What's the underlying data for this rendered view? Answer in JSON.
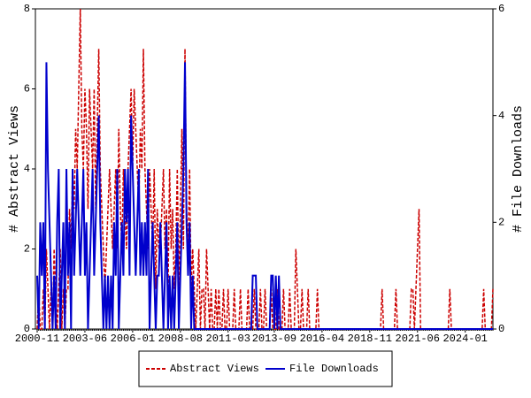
{
  "chart_data": {
    "type": "line",
    "y_label": "# Abstract Views",
    "y2_label": "# File Downloads",
    "categories": [
      "2000-11",
      null,
      null,
      null,
      null,
      null,
      null,
      null,
      null,
      null,
      null,
      null,
      null,
      null,
      null,
      null,
      null,
      null,
      null,
      null,
      null,
      null,
      null,
      null,
      null,
      null,
      null,
      null,
      null,
      null,
      null,
      "2003-06",
      null,
      null,
      null,
      null,
      null,
      null,
      null,
      null,
      null,
      null,
      null,
      null,
      null,
      null,
      null,
      null,
      null,
      null,
      null,
      null,
      null,
      null,
      null,
      null,
      null,
      null,
      null,
      null,
      null,
      null,
      "2006-01",
      null,
      null,
      null,
      null,
      null,
      null,
      null,
      null,
      null,
      null,
      null,
      null,
      null,
      null,
      null,
      null,
      null,
      null,
      null,
      null,
      null,
      null,
      null,
      null,
      null,
      null,
      null,
      null,
      null,
      null,
      "2008-08",
      null,
      null,
      null,
      null,
      null,
      null,
      null,
      null,
      null,
      null,
      null,
      null,
      null,
      null,
      null,
      null,
      null,
      null,
      null,
      null,
      null,
      null,
      null,
      null,
      null,
      null,
      null,
      null,
      null,
      null,
      "2011-03",
      null,
      null,
      null,
      null,
      null,
      null,
      null,
      null,
      null,
      null,
      null,
      null,
      null,
      null,
      null,
      null,
      null,
      null,
      null,
      null,
      null,
      null,
      null,
      null,
      null,
      null,
      null,
      null,
      null,
      "2013-09",
      null,
      null,
      null,
      null,
      null,
      null,
      null,
      null,
      null,
      null,
      null,
      null,
      null,
      null,
      null,
      null,
      null,
      null,
      null,
      null,
      null,
      null,
      null,
      null,
      null,
      null,
      null,
      null,
      null,
      null,
      "2016-04",
      null,
      null,
      null,
      null,
      null,
      null,
      null,
      null,
      null,
      null,
      null,
      null,
      null,
      null,
      null,
      null,
      null,
      null,
      null,
      null,
      null,
      null,
      null,
      null,
      null,
      null,
      null,
      null,
      null,
      null,
      "2018-11",
      null,
      null,
      null,
      null,
      null,
      null,
      null,
      null,
      null,
      null,
      null,
      null,
      null,
      null,
      null,
      null,
      null,
      null,
      null,
      null,
      null,
      null,
      null,
      null,
      null,
      null,
      null,
      null,
      null,
      null,
      "2021-06",
      null,
      null,
      null,
      null,
      null,
      null,
      null,
      null,
      null,
      null,
      null,
      null,
      null,
      null,
      null,
      null,
      null,
      null,
      null,
      null,
      null,
      null,
      null,
      null,
      null,
      null,
      null,
      null,
      null,
      null,
      "2024-01",
      null,
      null,
      null,
      null,
      null,
      null,
      null,
      null,
      null,
      null,
      null,
      null,
      null,
      null,
      null,
      null,
      null,
      null
    ],
    "series": [
      {
        "name": "Abstract Views",
        "color": "#cc0000",
        "dash": true,
        "values": [
          0,
          1,
          0,
          0,
          1,
          0,
          2,
          1,
          0,
          1,
          0,
          2,
          1,
          0,
          1,
          2,
          0,
          1,
          0,
          1,
          1,
          3,
          2,
          4,
          3,
          5,
          4,
          6,
          8,
          5,
          4,
          6,
          5,
          3,
          6,
          5,
          4,
          6,
          3,
          5,
          7,
          4,
          3,
          2,
          1,
          2,
          3,
          4,
          3,
          2,
          3,
          4,
          2,
          5,
          3,
          2,
          4,
          3,
          2,
          4,
          5,
          6,
          4,
          6,
          5,
          4,
          3,
          5,
          4,
          7,
          4,
          3,
          2,
          4,
          3,
          2,
          4,
          1,
          3,
          2,
          2,
          3,
          4,
          2,
          3,
          1,
          4,
          2,
          3,
          1,
          2,
          4,
          1,
          3,
          5,
          2,
          7,
          3,
          2,
          4,
          1,
          2,
          1,
          0,
          1,
          2,
          0,
          1,
          1,
          0,
          2,
          1,
          0,
          1,
          0,
          0,
          1,
          0,
          1,
          0,
          0,
          1,
          0,
          0,
          1,
          0,
          0,
          0,
          1,
          0,
          0,
          0,
          1,
          0,
          0,
          0,
          0,
          1,
          0,
          0,
          0,
          1,
          0,
          0,
          0,
          1,
          0,
          0,
          1,
          0,
          0,
          0,
          1,
          0,
          0,
          0,
          1,
          0,
          0,
          0,
          1,
          0,
          0,
          0,
          1,
          0,
          0,
          0,
          2,
          1,
          0,
          0,
          1,
          0,
          0,
          0,
          1,
          0,
          0,
          0,
          0,
          0,
          1,
          0,
          0,
          0,
          0,
          0,
          0,
          0,
          0,
          0,
          0,
          0,
          0,
          0,
          0,
          0,
          0,
          0,
          0,
          0,
          0,
          0,
          0,
          0,
          0,
          0,
          0,
          0,
          0,
          0,
          0,
          0,
          0,
          0,
          0,
          0,
          0,
          0,
          0,
          0,
          0,
          0,
          1,
          0,
          0,
          0,
          0,
          0,
          0,
          0,
          0,
          1,
          0,
          0,
          0,
          0,
          0,
          0,
          0,
          0,
          0,
          1,
          1,
          0,
          1,
          2,
          3,
          0,
          0,
          0,
          0,
          0,
          0,
          0,
          0,
          0,
          0,
          0,
          0,
          0,
          0,
          0,
          0,
          0,
          0,
          0,
          1,
          0,
          0,
          0,
          0,
          0,
          0,
          0,
          0,
          0,
          0,
          0,
          0,
          0,
          0,
          0,
          0,
          0,
          0,
          0,
          0,
          0,
          1,
          0,
          0,
          0,
          0,
          0,
          1
        ]
      },
      {
        "name": "File Downloads",
        "color": "#0000cc",
        "axis": "y2",
        "values": [
          1,
          0,
          2,
          1,
          2,
          0,
          5,
          3,
          2,
          1,
          0,
          1,
          0,
          2,
          3,
          0,
          1,
          2,
          0,
          3,
          1,
          2,
          0,
          3,
          1,
          2,
          3,
          2,
          1,
          2,
          3,
          1,
          2,
          0,
          1,
          2,
          3,
          1,
          2,
          3,
          4,
          2,
          1,
          0,
          1,
          0,
          1,
          0,
          1,
          0,
          2,
          1,
          3,
          0,
          1,
          2,
          1,
          3,
          2,
          3,
          1,
          4,
          3,
          2,
          1,
          2,
          3,
          1,
          2,
          1,
          2,
          1,
          3,
          0,
          1,
          2,
          1,
          0,
          1,
          1,
          2,
          1,
          0,
          1,
          2,
          0,
          1,
          0,
          1,
          0,
          1,
          2,
          0,
          1,
          2,
          3,
          5,
          2,
          1,
          2,
          0,
          1,
          0,
          0,
          0,
          0,
          0,
          0,
          0,
          0,
          0,
          0,
          0,
          0,
          0,
          0,
          0,
          0,
          0,
          0,
          0,
          0,
          0,
          0,
          0,
          0,
          0,
          0,
          0,
          0,
          0,
          0,
          0,
          0,
          0,
          0,
          0,
          0,
          0,
          0,
          1,
          1,
          1,
          0,
          0,
          0,
          0,
          0,
          0,
          0,
          0,
          0,
          1,
          1,
          0,
          1,
          0,
          1,
          0,
          0,
          0,
          0,
          0,
          0,
          0,
          0,
          0,
          0,
          0,
          0,
          0,
          0,
          0,
          0,
          0,
          0,
          0,
          0,
          0,
          0,
          0,
          0,
          0,
          0,
          0,
          0,
          0,
          0,
          0,
          0,
          0,
          0,
          0,
          0,
          0,
          0,
          0,
          0,
          0,
          0,
          0,
          0,
          0,
          0,
          0,
          0,
          0,
          0,
          0,
          0,
          0,
          0,
          0,
          0,
          0,
          0,
          0,
          0,
          0,
          0,
          0,
          0,
          0,
          0,
          0,
          0,
          0,
          0,
          0,
          0,
          0,
          0,
          0,
          0,
          0,
          0,
          0,
          0,
          0,
          0,
          0,
          0,
          0,
          0,
          0,
          0,
          0,
          0,
          0,
          0,
          0,
          0,
          0,
          0,
          0,
          0,
          0,
          0,
          0,
          0,
          0,
          0,
          0,
          0,
          0,
          0,
          0,
          0,
          0,
          0,
          0,
          0,
          0,
          0,
          0,
          0,
          0,
          0,
          0,
          0,
          0,
          0,
          0,
          0,
          0,
          0,
          0,
          0,
          0,
          0,
          0,
          0,
          0,
          0,
          0,
          0,
          0
        ]
      }
    ],
    "ylim": [
      0,
      8
    ],
    "yticks": [
      0,
      2,
      4,
      6,
      8
    ],
    "y2lim": [
      0,
      6
    ],
    "y2ticks": [
      0,
      2,
      4,
      6
    ],
    "legend": "bottom"
  }
}
